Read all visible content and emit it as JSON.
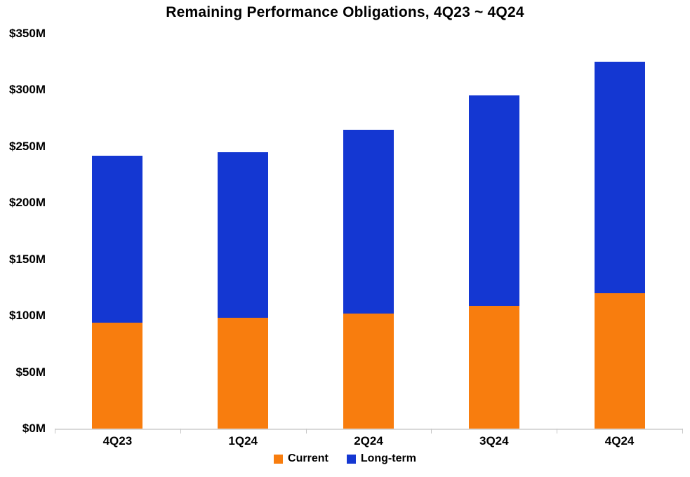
{
  "title": "Remaining Performance Obligations, 4Q23 ~ 4Q24",
  "chart_data": {
    "type": "bar",
    "stacked": true,
    "title": "Remaining Performance Obligations, 4Q23 ~ 4Q24",
    "categories": [
      "4Q23",
      "1Q24",
      "2Q24",
      "3Q24",
      "4Q24"
    ],
    "series": [
      {
        "name": "Current",
        "color": "#f87d0e",
        "values": [
          94,
          98,
          102,
          109,
          120
        ]
      },
      {
        "name": "Long-term",
        "color": "#1437d2",
        "values": [
          148,
          147,
          163,
          186,
          205
        ]
      }
    ],
    "totals": [
      242,
      245,
      265,
      295,
      325
    ],
    "xlabel": "",
    "ylabel": "",
    "ylim": [
      0,
      350
    ],
    "ytick_step": 50,
    "ytick_labels": [
      "$0M",
      "$50M",
      "$100M",
      "$150M",
      "$200M",
      "$250M",
      "$300M",
      "$350M"
    ],
    "grid": false,
    "legend_position": "bottom"
  },
  "legend": {
    "items": [
      {
        "label": "Current",
        "color": "#f87d0e"
      },
      {
        "label": "Long-term",
        "color": "#1437d2"
      }
    ]
  },
  "colors": {
    "current": "#f87d0e",
    "long_term": "#1437d2",
    "axis_line": "#d9d9d9",
    "text": "#000000",
    "background": "#ffffff"
  }
}
